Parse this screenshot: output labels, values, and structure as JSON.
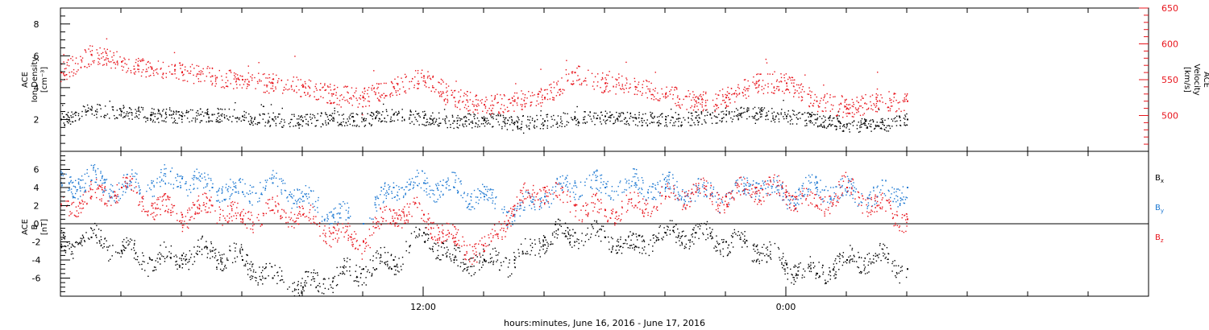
{
  "figure": {
    "xlabel": "hours:minutes, June 16, 2016 - June 17, 2016",
    "x_ticks": [
      "12:00",
      "0:00"
    ],
    "x_unit": "hours since 00:00 June 16, 2016",
    "x_ticks_hours": [
      12,
      24
    ],
    "xlim_hours": [
      0,
      36
    ]
  },
  "colors": {
    "black": "#000000",
    "red": "#e8141c",
    "blue": "#1c78d2"
  },
  "chart_data": [
    {
      "type": "scatter",
      "title": "",
      "ylabel_left": [
        "ACE",
        "Ion Density",
        "[cm⁻³]"
      ],
      "ylabel_right": [
        "ACE",
        "Velocity",
        "[km/s]"
      ],
      "ylim_left": [
        0,
        9
      ],
      "ylim_right": [
        450,
        650
      ],
      "yticks_left": [
        "2",
        "4",
        "6",
        "8"
      ],
      "yticks_right": [
        "500",
        "550",
        "600",
        "650"
      ],
      "x_hours": [
        0,
        1,
        2,
        3,
        4,
        5,
        6,
        7,
        8,
        9,
        10,
        11,
        12,
        13,
        14,
        15,
        16,
        17,
        18,
        19,
        20,
        21,
        22,
        23,
        24,
        25,
        26,
        27,
        28
      ],
      "series": [
        {
          "color": "black",
          "axis": "left",
          "values": [
            2.0,
            2.6,
            2.5,
            2.3,
            2.2,
            2.3,
            2.2,
            2.0,
            1.9,
            2.1,
            2.0,
            2.3,
            2.1,
            1.9,
            2.0,
            1.8,
            1.9,
            2.1,
            2.2,
            2.1,
            2.0,
            2.1,
            2.3,
            2.4,
            2.2,
            2.0,
            1.7,
            1.6,
            2.0
          ]
        },
        {
          "color": "red",
          "axis": "right",
          "values": [
            560,
            585,
            575,
            565,
            560,
            555,
            550,
            545,
            540,
            530,
            525,
            540,
            555,
            525,
            515,
            520,
            525,
            560,
            545,
            540,
            530,
            520,
            525,
            545,
            545,
            520,
            510,
            520,
            520
          ]
        }
      ]
    },
    {
      "type": "scatter",
      "title": "",
      "ylabel": [
        "ACE",
        "B",
        "[nT]"
      ],
      "ylim": [
        -8,
        8
      ],
      "yticks": [
        "-6",
        "-4",
        "-2",
        "0",
        "2",
        "4",
        "6"
      ],
      "x_hours": [
        0,
        1,
        2,
        3,
        4,
        5,
        6,
        7,
        8,
        9,
        10,
        11,
        12,
        13,
        14,
        15,
        16,
        17,
        18,
        19,
        20,
        21,
        22,
        23,
        24,
        25,
        26,
        27,
        28
      ],
      "series": [
        {
          "name": "Bx",
          "color": "black",
          "values": [
            -2.5,
            -1.5,
            -3.0,
            -4.0,
            -3.5,
            -3.0,
            -4.0,
            -6.0,
            -7.0,
            -6.0,
            -5.0,
            -4.0,
            -1.0,
            -4.0,
            -4.0,
            -4.0,
            -1.5,
            -1.0,
            -1.5,
            -2.5,
            -1.0,
            -1.0,
            -2.0,
            -2.5,
            -4.5,
            -5.5,
            -4.0,
            -3.5,
            -5.0
          ]
        },
        {
          "name": "By",
          "color": "blue",
          "values": [
            4.5,
            4.8,
            4.0,
            4.5,
            5.0,
            4.0,
            3.5,
            4.5,
            3.0,
            1.0,
            0.0,
            4.0,
            4.5,
            4.0,
            3.0,
            1.0,
            3.0,
            4.5,
            4.0,
            4.5,
            4.0,
            3.5,
            3.0,
            4.5,
            3.0,
            4.0,
            3.5,
            3.0,
            4.0
          ]
        },
        {
          "name": "Bz",
          "color": "red",
          "values": [
            2.0,
            3.0,
            4.0,
            2.0,
            1.0,
            2.0,
            0.5,
            1.5,
            1.0,
            -1.0,
            -2.0,
            1.5,
            1.0,
            -2.0,
            -3.0,
            2.0,
            4.0,
            2.0,
            1.5,
            2.0,
            3.0,
            3.5,
            3.0,
            4.0,
            3.5,
            2.0,
            4.0,
            2.0,
            0.5
          ]
        }
      ],
      "legend": [
        "Bx",
        "By",
        "Bz"
      ],
      "legend_position": "right"
    }
  ]
}
